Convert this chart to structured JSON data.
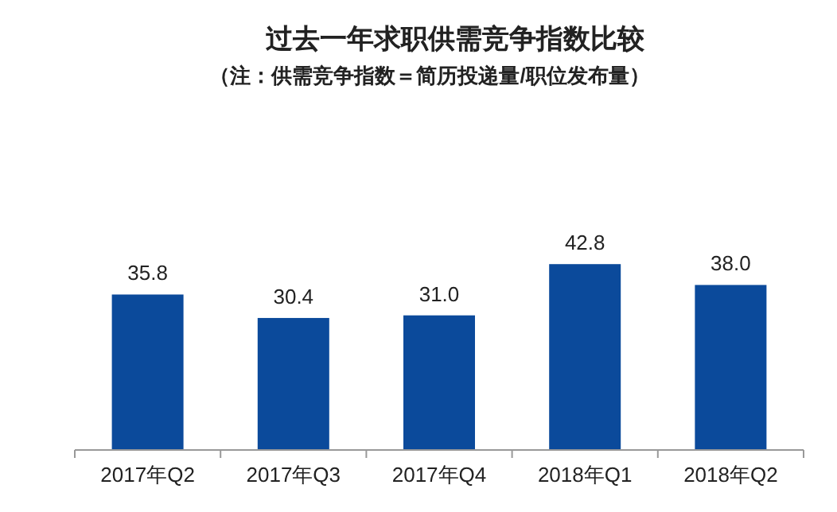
{
  "chart_data": {
    "type": "bar",
    "title": "过去一年求职供需竞争指数比较",
    "subtitle": "（注：供需竞争指数＝简历投递量/职位发布量）",
    "categories": [
      "2017年Q2",
      "2017年Q3",
      "2017年Q4",
      "2018年Q1",
      "2018年Q2"
    ],
    "values": [
      35.8,
      30.4,
      31.0,
      42.8,
      38.0
    ],
    "value_labels": [
      "35.8",
      "30.4",
      "31.0",
      "42.8",
      "38.0"
    ],
    "color": "#0b4a9b"
  }
}
